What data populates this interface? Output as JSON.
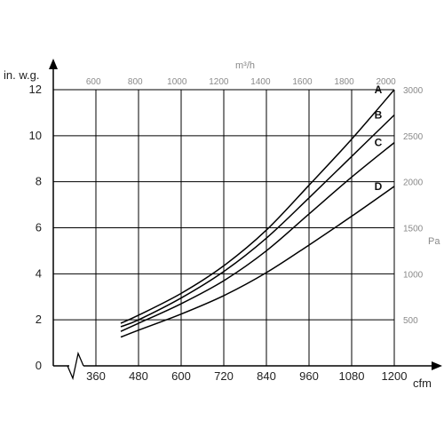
{
  "chart_data": {
    "type": "line",
    "xlabel": "cfm",
    "ylabel": "in. w.g.",
    "x2label": "m³/h",
    "y2label": "Pa",
    "xlim": [
      240,
      1200
    ],
    "ylim": [
      0,
      12
    ],
    "x2lim": [
      408,
      2040
    ],
    "y2lim": [
      0,
      3000
    ],
    "grid": true,
    "x_ticks": [
      "360",
      "480",
      "600",
      "720",
      "840",
      "960",
      "1080",
      "1200"
    ],
    "x_tick_values": [
      360,
      480,
      600,
      720,
      840,
      960,
      1080,
      1200
    ],
    "y_ticks": [
      "0",
      "2",
      "4",
      "6",
      "8",
      "10",
      "12"
    ],
    "y_tick_values": [
      0,
      2,
      4,
      6,
      8,
      10,
      12
    ],
    "x2_ticks": [
      "600",
      "800",
      "1000",
      "1200",
      "1400",
      "1600",
      "1800",
      "2000"
    ],
    "x2_tick_values": [
      600,
      800,
      1000,
      1200,
      1400,
      1600,
      1800,
      2000
    ],
    "y2_ticks": [
      "500",
      "1000",
      "1500",
      "2000",
      "2500",
      "3000"
    ],
    "y2_tick_values": [
      500,
      1000,
      1500,
      2000,
      2500,
      3000
    ],
    "series": [
      {
        "name": "A",
        "x": [
          430,
          480,
          600,
          720,
          840,
          960,
          1080,
          1200
        ],
        "y": [
          1.85,
          2.2,
          3.15,
          4.35,
          5.9,
          7.85,
          9.85,
          12.0
        ]
      },
      {
        "name": "B",
        "x": [
          430,
          480,
          600,
          720,
          840,
          960,
          1080,
          1200
        ],
        "y": [
          1.7,
          2.0,
          2.95,
          4.1,
          5.55,
          7.3,
          9.1,
          10.9
        ]
      },
      {
        "name": "C",
        "x": [
          430,
          480,
          600,
          720,
          840,
          960,
          1080,
          1200
        ],
        "y": [
          1.5,
          1.85,
          2.7,
          3.7,
          5.0,
          6.6,
          8.2,
          9.7
        ]
      },
      {
        "name": "D",
        "x": [
          430,
          480,
          600,
          720,
          840,
          960,
          1080,
          1200
        ],
        "y": [
          1.25,
          1.55,
          2.25,
          3.05,
          4.05,
          5.25,
          6.5,
          7.8
        ]
      }
    ]
  }
}
